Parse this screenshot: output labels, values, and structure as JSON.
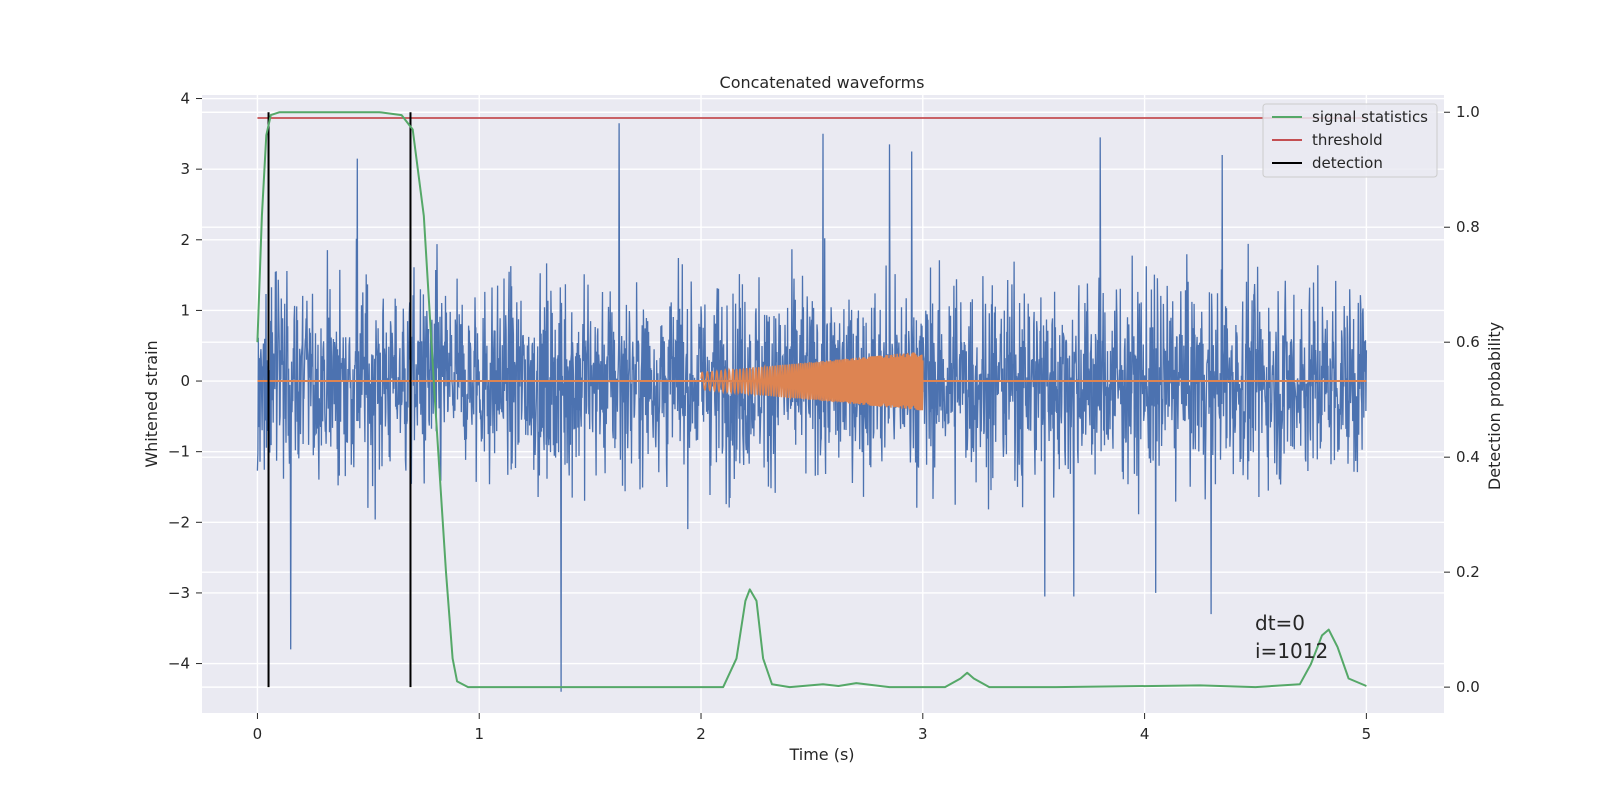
{
  "chart_data": {
    "type": "line",
    "title": "Concatenated waveforms",
    "xlabel": "Time (s)",
    "ylabel_left": "Whitened strain",
    "ylabel_right": "Detection probability",
    "xlim": [
      -0.25,
      5.35
    ],
    "ylim_left": [
      -4.7,
      4.05
    ],
    "ylim_right": [
      -0.045,
      1.03
    ],
    "x_ticks": [
      0,
      1,
      2,
      3,
      4,
      5
    ],
    "y_ticks_left": [
      -4,
      -3,
      -2,
      -1,
      0,
      1,
      2,
      3,
      4
    ],
    "y_ticks_right": [
      0.0,
      0.2,
      0.4,
      0.6,
      0.8,
      1.0
    ],
    "grid": true,
    "legend_position": "top-right",
    "colors": {
      "strain": "#4c72b0",
      "waveform": "#dd8452",
      "signal_statistics": "#55a868",
      "threshold": "#c44e52",
      "detection": "#000000",
      "background": "#eaeaf2"
    },
    "strain_series": {
      "x_range": [
        0,
        5
      ],
      "noise_envelope": [
        -2.0,
        2.0
      ],
      "peaks": [
        {
          "x": 0.05,
          "y": -3.0
        },
        {
          "x": 0.15,
          "y": -3.8
        },
        {
          "x": 0.45,
          "y": 3.15
        },
        {
          "x": 1.37,
          "y": -4.4
        },
        {
          "x": 1.63,
          "y": 3.65
        },
        {
          "x": 2.55,
          "y": 3.5
        },
        {
          "x": 2.85,
          "y": 3.35
        },
        {
          "x": 2.95,
          "y": 3.25
        },
        {
          "x": 3.55,
          "y": -3.05
        },
        {
          "x": 3.68,
          "y": -3.05
        },
        {
          "x": 3.8,
          "y": 3.45
        },
        {
          "x": 4.05,
          "y": -3.0
        },
        {
          "x": 4.3,
          "y": -3.3
        },
        {
          "x": 4.35,
          "y": 3.2
        }
      ]
    },
    "waveform_series": {
      "x_range": [
        0,
        5
      ],
      "chirp": {
        "x_start": 2.0,
        "x_end": 3.0,
        "amp_start": 0.12,
        "amp_end": 0.42
      }
    },
    "signal_statistics": {
      "x": [
        0.0,
        0.02,
        0.04,
        0.06,
        0.1,
        0.3,
        0.55,
        0.65,
        0.7,
        0.75,
        0.8,
        0.85,
        0.88,
        0.9,
        0.95,
        1.5,
        2.1,
        2.16,
        2.2,
        2.22,
        2.25,
        2.28,
        2.32,
        2.4,
        2.55,
        2.62,
        2.7,
        2.85,
        3.1,
        3.17,
        3.2,
        3.23,
        3.3,
        3.6,
        4.25,
        4.5,
        4.7,
        4.75,
        4.8,
        4.83,
        4.87,
        4.92,
        5.0
      ],
      "y": [
        0.6,
        0.82,
        0.96,
        0.995,
        1.0,
        1.0,
        1.0,
        0.995,
        0.97,
        0.82,
        0.5,
        0.2,
        0.05,
        0.01,
        0.0,
        0.0,
        0.0,
        0.05,
        0.15,
        0.17,
        0.15,
        0.05,
        0.005,
        0.0,
        0.005,
        0.002,
        0.007,
        0.0,
        0.0,
        0.015,
        0.025,
        0.015,
        0.0,
        0.0,
        0.003,
        0.0,
        0.005,
        0.04,
        0.09,
        0.1,
        0.07,
        0.015,
        0.002
      ]
    },
    "threshold": {
      "value": 0.99,
      "x_range": [
        0,
        5
      ]
    },
    "detections": [
      0.05,
      0.69
    ],
    "legend": [
      "signal statistics",
      "threshold",
      "detection"
    ],
    "annotations": [
      "dt=0",
      "i=1012"
    ]
  }
}
